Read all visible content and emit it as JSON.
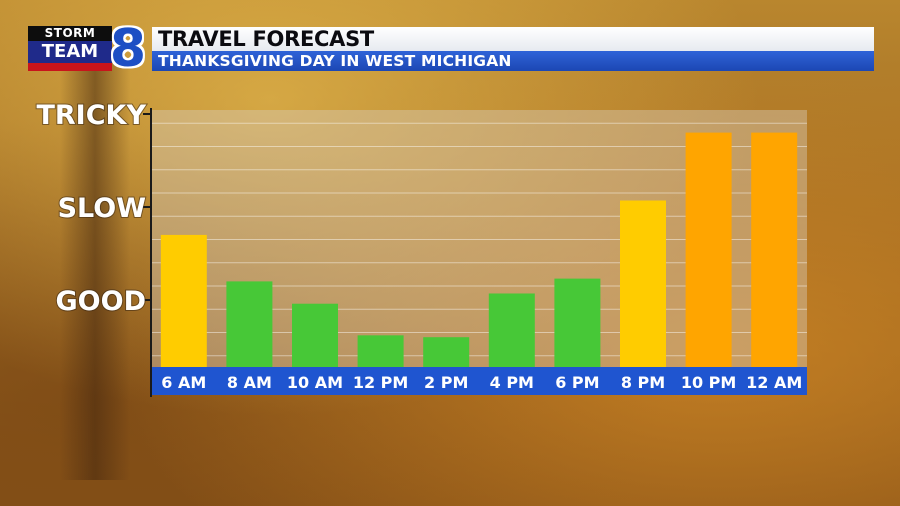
{
  "header": {
    "logo": {
      "storm": "STORM",
      "team": "TEAM",
      "eight": "8"
    },
    "title": "TRAVEL FORECAST",
    "subtitle": "THANKSGIVING DAY IN WEST MICHIGAN"
  },
  "colors": {
    "good": "#47c837",
    "slow": "#ffcc00",
    "tricky": "#ffa500",
    "axis_strip": "#1f55d0",
    "subtitle_bar": "#2a5bd0"
  },
  "chart_data": {
    "type": "bar",
    "title": "TRAVEL FORECAST",
    "subtitle": "THANKSGIVING DAY IN WEST MICHIGAN",
    "categories": [
      "6 AM",
      "8 AM",
      "10 AM",
      "12 PM",
      "2 PM",
      "4 PM",
      "6 PM",
      "8 PM",
      "10 PM",
      "12 AM"
    ],
    "values": [
      1.7,
      1.2,
      0.96,
      0.62,
      0.6,
      1.07,
      1.23,
      2.07,
      2.8,
      2.8
    ],
    "bar_colors": [
      "#ffcc00",
      "#47c837",
      "#47c837",
      "#47c837",
      "#47c837",
      "#47c837",
      "#47c837",
      "#ffcc00",
      "#ffa500",
      "#ffa500"
    ],
    "y_ticks": [
      {
        "label": "GOOD",
        "value": 1
      },
      {
        "label": "SLOW",
        "value": 2
      },
      {
        "label": "TRICKY",
        "value": 3
      }
    ],
    "ylim": [
      0.3,
      3
    ],
    "grid": true,
    "xlabel": "",
    "ylabel": ""
  }
}
